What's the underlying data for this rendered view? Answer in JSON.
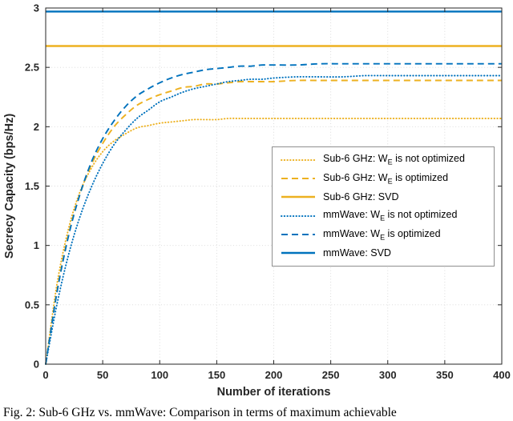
{
  "figure": {
    "caption": "Fig. 2: Sub-6 GHz vs. mmWave: Comparison in terms of maximum achievable"
  },
  "chart_data": {
    "type": "line",
    "title": "",
    "xlabel": "Number of iterations",
    "ylabel": "Secrecy Capacity (bps/Hz)",
    "xlim": [
      0,
      400
    ],
    "ylim": [
      0,
      3
    ],
    "xticks": [
      0,
      50,
      100,
      150,
      200,
      250,
      300,
      350,
      400
    ],
    "yticks": [
      0,
      0.5,
      1,
      1.5,
      2,
      2.5,
      3
    ],
    "grid": true,
    "legend_position": "middle-right",
    "colors": {
      "sub6": "#EDB120",
      "mmwave": "#0072BD"
    },
    "x": [
      0,
      10,
      20,
      30,
      40,
      50,
      60,
      70,
      80,
      90,
      100,
      110,
      120,
      130,
      140,
      150,
      160,
      170,
      180,
      190,
      200,
      220,
      240,
      260,
      280,
      300,
      320,
      340,
      360,
      380,
      400
    ],
    "series": [
      {
        "name": "Sub-6 GHz: W_E is not optimized",
        "label_pre": "Sub-6 GHz: W",
        "label_sub": "E",
        "label_post": " is not optimized",
        "color": "#EDB120",
        "style": "dotted",
        "values": [
          0,
          0.68,
          1.14,
          1.45,
          1.65,
          1.79,
          1.88,
          1.94,
          1.99,
          2.01,
          2.03,
          2.04,
          2.05,
          2.06,
          2.06,
          2.06,
          2.07,
          2.07,
          2.07,
          2.07,
          2.07,
          2.07,
          2.07,
          2.07,
          2.07,
          2.07,
          2.07,
          2.07,
          2.07,
          2.07,
          2.07
        ]
      },
      {
        "name": "Sub-6 GHz: W_E is optimized",
        "label_pre": "Sub-6 GHz: W",
        "label_sub": "E",
        "label_post": " is optimized",
        "color": "#EDB120",
        "style": "dashed",
        "values": [
          0,
          0.62,
          1.09,
          1.43,
          1.68,
          1.86,
          2.0,
          2.1,
          2.18,
          2.23,
          2.27,
          2.3,
          2.33,
          2.34,
          2.36,
          2.36,
          2.37,
          2.38,
          2.38,
          2.38,
          2.38,
          2.39,
          2.39,
          2.39,
          2.39,
          2.39,
          2.39,
          2.39,
          2.39,
          2.39,
          2.39
        ]
      },
      {
        "name": "Sub-6 GHz: SVD",
        "label_pre": "Sub-6 GHz: SVD",
        "label_sub": "",
        "label_post": "",
        "color": "#EDB120",
        "style": "solid",
        "const_value": 2.68
      },
      {
        "name": "mmWave: W_E is not optimized",
        "label_pre": "mmWave: W",
        "label_sub": "E",
        "label_post": " is not optimized",
        "color": "#0072BD",
        "style": "dotted",
        "values": [
          0,
          0.51,
          0.92,
          1.24,
          1.49,
          1.69,
          1.85,
          1.97,
          2.07,
          2.14,
          2.21,
          2.25,
          2.29,
          2.32,
          2.34,
          2.36,
          2.38,
          2.39,
          2.4,
          2.4,
          2.41,
          2.42,
          2.42,
          2.42,
          2.43,
          2.43,
          2.43,
          2.43,
          2.43,
          2.43,
          2.43
        ]
      },
      {
        "name": "mmWave: W_E is optimized",
        "label_pre": "mmWave: W",
        "label_sub": "E",
        "label_post": " is optimized",
        "color": "#0072BD",
        "style": "dashed",
        "values": [
          0,
          0.61,
          1.08,
          1.43,
          1.7,
          1.9,
          2.05,
          2.17,
          2.26,
          2.32,
          2.37,
          2.41,
          2.44,
          2.46,
          2.48,
          2.49,
          2.5,
          2.51,
          2.51,
          2.52,
          2.52,
          2.52,
          2.53,
          2.53,
          2.53,
          2.53,
          2.53,
          2.53,
          2.53,
          2.53,
          2.53
        ]
      },
      {
        "name": "mmWave: SVD",
        "label_pre": "mmWave: SVD",
        "label_sub": "",
        "label_post": "",
        "color": "#0072BD",
        "style": "solid",
        "const_value": 2.97
      }
    ]
  }
}
